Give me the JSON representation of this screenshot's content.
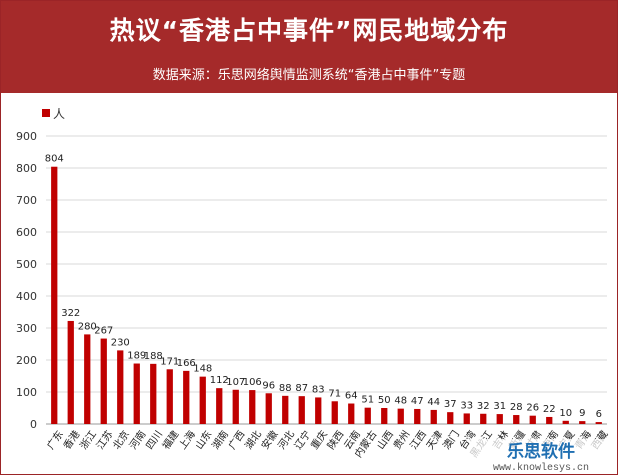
{
  "header": {
    "title": "热议“香港占中事件”网民地域分布",
    "subtitle": "数据来源：乐思网络舆情监测系统“香港占中事件”专题"
  },
  "chart_data": {
    "type": "bar",
    "title": "热议“香港占中事件”网民地域分布",
    "xlabel": "",
    "ylabel": "",
    "ylim": [
      0,
      900
    ],
    "yticks": [
      0,
      100,
      200,
      300,
      400,
      500,
      600,
      700,
      800,
      900
    ],
    "grid": true,
    "legend_position": "top-left",
    "series": [
      {
        "name": "人",
        "color": "#c00000",
        "values": [
          804,
          322,
          280,
          267,
          230,
          189,
          188,
          171,
          166,
          148,
          112,
          107,
          106,
          96,
          88,
          87,
          83,
          71,
          64,
          51,
          50,
          48,
          47,
          44,
          37,
          33,
          32,
          31,
          28,
          26,
          22,
          10,
          9,
          6
        ]
      }
    ],
    "categories": [
      "广东",
      "香港",
      "浙江",
      "江苏",
      "北京",
      "河南",
      "四川",
      "福建",
      "上海",
      "山东",
      "湖南",
      "广西",
      "湖北",
      "安徽",
      "河北",
      "辽宁",
      "重庆",
      "陕西",
      "云南",
      "内蒙古",
      "山西",
      "贵州",
      "江西",
      "天津",
      "澳门",
      "台湾",
      "黑龙江",
      "吉林",
      "新疆",
      "甘肃",
      "海南",
      "宁夏",
      "青海",
      "西藏"
    ]
  },
  "watermark": {
    "brand": "乐思软件",
    "url": "www.knowlesys.cn"
  }
}
